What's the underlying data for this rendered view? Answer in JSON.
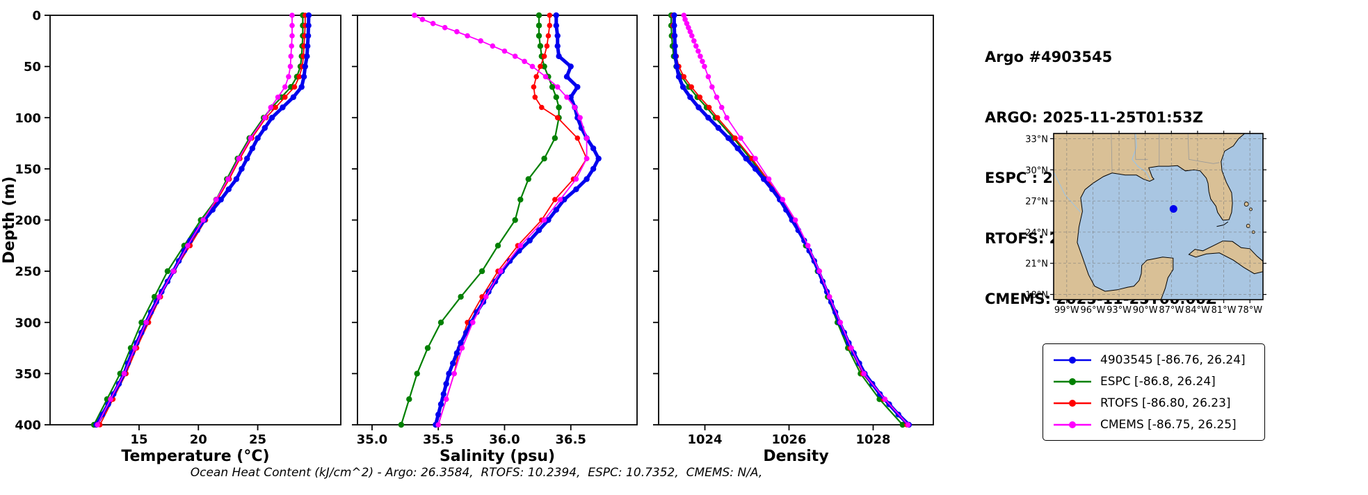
{
  "header": {
    "title": "Argo #4903545",
    "lines": [
      "ARGO: 2025-11-25T01:53Z",
      "ESPC : 2025-11-25T03:00Z",
      "RTOFS: 2025-11-25T00:00Z",
      "CMEMS: 2025-11-25T00:00Z"
    ]
  },
  "footer": {
    "text": "Ocean Heat Content (kJ/cm^2) - Argo: 26.3584,  RTOFS: 10.2394,  ESPC: 10.7352,  CMEMS: N/A,"
  },
  "legend": {
    "items": [
      {
        "name": "argo",
        "label": "4903545 [-86.76, 26.24]",
        "color": "#0000ee"
      },
      {
        "name": "espc",
        "label": "ESPC [-86.8, 26.24]",
        "color": "#008000"
      },
      {
        "name": "rtofs",
        "label": "RTOFS [-86.80, 26.23]",
        "color": "#ff0000"
      },
      {
        "name": "cmems",
        "label": "CMEMS [-86.75, 26.25]",
        "color": "#ff00ff"
      }
    ]
  },
  "map": {
    "lat_ticks": [
      "33°N",
      "30°N",
      "27°N",
      "24°N",
      "21°N",
      "18°N"
    ],
    "lon_ticks": [
      "99°W",
      "96°W",
      "93°W",
      "90°W",
      "87°W",
      "84°W",
      "81°W",
      "78°W"
    ],
    "marker": {
      "lon": -86.76,
      "lat": 26.24,
      "color": "#0000ee"
    },
    "land_color": "#d9c096",
    "water_color": "#a9c6e2"
  },
  "chart_data": [
    {
      "type": "line",
      "name": "temperature",
      "xlabel": "Temperature (°C)",
      "ylabel": "Depth (m)",
      "xlim": [
        7.5,
        32.0
      ],
      "ylim": [
        0,
        400
      ],
      "grid": false,
      "xtick_values": [
        15,
        20,
        25
      ],
      "xtick_labels": [
        "15",
        "20",
        "25"
      ],
      "ytick_values": [
        0,
        50,
        100,
        150,
        200,
        250,
        300,
        350,
        400
      ],
      "ytick_labels": [
        "0",
        "50",
        "100",
        "150",
        "200",
        "250",
        "300",
        "350",
        "400"
      ],
      "series": [
        {
          "name": "ESPC",
          "color": "#008000",
          "lw": 2.2,
          "r": 4.2,
          "depths": [
            0,
            10,
            20,
            30,
            40,
            50,
            60,
            70,
            80,
            90,
            100,
            120,
            140,
            160,
            180,
            200,
            225,
            250,
            275,
            300,
            325,
            350,
            375,
            400
          ],
          "values": [
            28.8,
            28.8,
            28.8,
            28.75,
            28.7,
            28.6,
            28.3,
            27.8,
            27.0,
            26.2,
            25.5,
            24.3,
            23.3,
            22.4,
            21.5,
            20.2,
            18.8,
            17.4,
            16.3,
            15.2,
            14.3,
            13.4,
            12.3,
            11.2
          ]
        },
        {
          "name": "RTOFS",
          "color": "#ff0000",
          "lw": 1.8,
          "r": 3.8,
          "depths": [
            0,
            10,
            20,
            30,
            40,
            50,
            60,
            70,
            80,
            90,
            100,
            120,
            140,
            160,
            180,
            200,
            225,
            250,
            275,
            300,
            325,
            350,
            375,
            400
          ],
          "values": [
            29.0,
            29.0,
            28.95,
            28.9,
            28.85,
            28.75,
            28.5,
            28.1,
            27.3,
            26.5,
            25.7,
            24.5,
            23.5,
            22.6,
            21.6,
            20.6,
            19.3,
            17.95,
            16.8,
            15.8,
            14.8,
            13.9,
            12.8,
            11.7
          ]
        },
        {
          "name": "4903545",
          "color": "#0000ee",
          "lw": 5,
          "r": 4.2,
          "depths": [
            0,
            10,
            20,
            30,
            40,
            50,
            60,
            70,
            80,
            90,
            100,
            110,
            120,
            130,
            140,
            150,
            160,
            170,
            180,
            190,
            200,
            210,
            220,
            230,
            240,
            250,
            260,
            270,
            280,
            290,
            300,
            310,
            320,
            330,
            340,
            350,
            360,
            370,
            380,
            390,
            400
          ],
          "values": [
            29.3,
            29.28,
            29.25,
            29.2,
            29.15,
            29.0,
            28.9,
            28.7,
            28.0,
            27.1,
            26.2,
            25.6,
            25.0,
            24.55,
            24.1,
            23.65,
            23.2,
            22.55,
            21.9,
            21.2,
            20.5,
            19.9,
            19.3,
            18.8,
            18.35,
            17.9,
            17.4,
            16.9,
            16.45,
            16.0,
            15.6,
            15.2,
            14.8,
            14.4,
            14.05,
            13.75,
            13.3,
            12.85,
            12.4,
            11.9,
            11.4
          ]
        },
        {
          "name": "CMEMS",
          "color": "#ff00ff",
          "lw": 1.8,
          "r": 3.8,
          "depths": [
            0,
            10,
            20,
            30,
            40,
            50,
            60,
            70,
            80,
            90,
            100,
            120,
            140,
            160,
            180,
            200,
            225,
            250,
            275,
            300,
            325,
            350,
            375,
            400
          ],
          "values": [
            27.9,
            27.9,
            27.9,
            27.85,
            27.8,
            27.75,
            27.6,
            27.3,
            26.7,
            26.1,
            25.6,
            24.4,
            23.4,
            22.5,
            21.5,
            20.4,
            19.1,
            17.9,
            16.7,
            15.6,
            14.65,
            13.75,
            12.6,
            11.5
          ]
        }
      ]
    },
    {
      "type": "line",
      "name": "salinity",
      "xlabel": "Salinity (psu)",
      "ylabel": "Depth (m)",
      "xlim": [
        34.89,
        37.0
      ],
      "ylim": [
        0,
        400
      ],
      "grid": false,
      "xtick_values": [
        35.0,
        35.5,
        36.0,
        36.5
      ],
      "xtick_labels": [
        "35.0",
        "35.5",
        "36.0",
        "36.5"
      ],
      "ytick_values": [
        0,
        50,
        100,
        150,
        200,
        250,
        300,
        350,
        400
      ],
      "ytick_labels": [
        "0",
        "50",
        "100",
        "150",
        "200",
        "250",
        "300",
        "350",
        "400"
      ],
      "series": [
        {
          "name": "ESPC",
          "color": "#008000",
          "lw": 2.2,
          "r": 4.2,
          "depths": [
            0,
            10,
            20,
            30,
            40,
            50,
            60,
            70,
            80,
            90,
            100,
            120,
            140,
            160,
            180,
            200,
            225,
            250,
            275,
            300,
            325,
            350,
            375,
            400
          ],
          "values": [
            36.26,
            36.26,
            36.26,
            36.27,
            36.28,
            36.3,
            36.33,
            36.36,
            36.39,
            36.41,
            36.41,
            36.38,
            36.3,
            36.18,
            36.12,
            36.08,
            35.95,
            35.83,
            35.67,
            35.52,
            35.42,
            35.34,
            35.28,
            35.22
          ]
        },
        {
          "name": "RTOFS",
          "color": "#ff0000",
          "lw": 1.8,
          "r": 3.8,
          "depths": [
            0,
            10,
            20,
            30,
            40,
            50,
            60,
            70,
            80,
            90,
            100,
            120,
            140,
            160,
            180,
            200,
            225,
            250,
            275,
            300,
            325,
            350,
            375,
            400
          ],
          "values": [
            36.34,
            36.34,
            36.33,
            36.32,
            36.3,
            36.27,
            36.24,
            36.22,
            36.23,
            36.28,
            36.4,
            36.55,
            36.62,
            36.52,
            36.38,
            36.28,
            36.1,
            35.95,
            35.83,
            35.72,
            35.66,
            35.62,
            35.56,
            35.5
          ]
        },
        {
          "name": "4903545",
          "color": "#0000ee",
          "lw": 5,
          "r": 4.2,
          "depths": [
            0,
            10,
            20,
            30,
            40,
            50,
            60,
            70,
            80,
            90,
            100,
            110,
            120,
            130,
            140,
            150,
            160,
            170,
            180,
            190,
            200,
            210,
            220,
            230,
            240,
            250,
            260,
            270,
            280,
            290,
            300,
            310,
            320,
            330,
            340,
            350,
            360,
            370,
            380,
            390,
            400
          ],
          "values": [
            36.39,
            36.39,
            36.4,
            36.4,
            36.41,
            36.5,
            36.47,
            36.55,
            36.5,
            36.53,
            36.55,
            36.58,
            36.62,
            36.67,
            36.71,
            36.67,
            36.62,
            36.54,
            36.45,
            36.39,
            36.33,
            36.26,
            36.19,
            36.11,
            36.04,
            35.98,
            35.93,
            35.88,
            35.84,
            35.79,
            35.75,
            35.71,
            35.67,
            35.64,
            35.61,
            35.58,
            35.56,
            35.54,
            35.52,
            35.5,
            35.48
          ]
        },
        {
          "name": "CMEMS",
          "color": "#ff00ff",
          "lw": 1.8,
          "r": 3.8,
          "depths": [
            0,
            4,
            8,
            12,
            16,
            20,
            25,
            30,
            35,
            40,
            45,
            50,
            60,
            70,
            80,
            90,
            100,
            120,
            140,
            160,
            180,
            200,
            225,
            250,
            275,
            300,
            325,
            350,
            375,
            400
          ],
          "values": [
            35.32,
            35.38,
            35.46,
            35.55,
            35.64,
            35.72,
            35.82,
            35.91,
            36.0,
            36.08,
            36.15,
            36.21,
            36.31,
            36.4,
            36.47,
            36.53,
            36.57,
            36.62,
            36.62,
            36.54,
            36.42,
            36.3,
            36.12,
            35.97,
            35.86,
            35.76,
            35.68,
            35.62,
            35.56,
            35.5
          ]
        }
      ]
    },
    {
      "type": "line",
      "name": "density",
      "xlabel": "Density",
      "ylabel": "Depth (m)",
      "xlim": [
        1022.9,
        1029.43
      ],
      "ylim": [
        0,
        400
      ],
      "grid": false,
      "xtick_values": [
        1024,
        1026,
        1028
      ],
      "xtick_labels": [
        "1024",
        "1026",
        "1028"
      ],
      "ytick_values": [
        0,
        50,
        100,
        150,
        200,
        250,
        300,
        350,
        400
      ],
      "ytick_labels": [
        "0",
        "50",
        "100",
        "150",
        "200",
        "250",
        "300",
        "350",
        "400"
      ],
      "series": [
        {
          "name": "ESPC",
          "color": "#008000",
          "lw": 2.2,
          "r": 4.2,
          "depths": [
            0,
            10,
            20,
            30,
            40,
            50,
            60,
            70,
            80,
            90,
            100,
            120,
            140,
            160,
            180,
            200,
            225,
            250,
            275,
            300,
            325,
            350,
            375,
            400
          ],
          "values": [
            1023.2,
            1023.2,
            1023.21,
            1023.23,
            1023.26,
            1023.32,
            1023.45,
            1023.62,
            1023.82,
            1024.04,
            1024.25,
            1024.68,
            1025.08,
            1025.45,
            1025.8,
            1026.1,
            1026.4,
            1026.68,
            1026.92,
            1027.15,
            1027.4,
            1027.7,
            1028.15,
            1028.7
          ]
        },
        {
          "name": "RTOFS",
          "color": "#ff0000",
          "lw": 1.8,
          "r": 3.8,
          "depths": [
            0,
            10,
            20,
            30,
            40,
            50,
            60,
            70,
            80,
            90,
            100,
            120,
            140,
            160,
            180,
            200,
            225,
            250,
            275,
            300,
            325,
            350,
            375,
            400
          ],
          "values": [
            1023.24,
            1023.24,
            1023.26,
            1023.28,
            1023.32,
            1023.38,
            1023.5,
            1023.68,
            1023.88,
            1024.1,
            1024.3,
            1024.72,
            1025.12,
            1025.48,
            1025.82,
            1026.12,
            1026.44,
            1026.72,
            1026.96,
            1027.2,
            1027.45,
            1027.75,
            1028.25,
            1028.8
          ]
        },
        {
          "name": "4903545",
          "color": "#0000ee",
          "lw": 5,
          "r": 4.2,
          "depths": [
            0,
            10,
            20,
            30,
            40,
            50,
            60,
            70,
            80,
            90,
            100,
            110,
            120,
            130,
            140,
            150,
            160,
            170,
            180,
            190,
            200,
            210,
            220,
            230,
            240,
            250,
            260,
            270,
            280,
            290,
            300,
            310,
            320,
            330,
            340,
            350,
            360,
            370,
            380,
            390,
            400
          ],
          "values": [
            1023.27,
            1023.27,
            1023.28,
            1023.29,
            1023.3,
            1023.33,
            1023.38,
            1023.48,
            1023.65,
            1023.85,
            1024.08,
            1024.32,
            1024.56,
            1024.78,
            1024.98,
            1025.2,
            1025.4,
            1025.6,
            1025.78,
            1025.93,
            1026.07,
            1026.22,
            1026.36,
            1026.48,
            1026.6,
            1026.7,
            1026.8,
            1026.9,
            1027.0,
            1027.1,
            1027.2,
            1027.31,
            1027.42,
            1027.54,
            1027.67,
            1027.8,
            1027.98,
            1028.16,
            1028.38,
            1028.6,
            1028.85
          ]
        },
        {
          "name": "CMEMS",
          "color": "#ff00ff",
          "lw": 1.8,
          "r": 3.8,
          "depths": [
            0,
            4,
            8,
            12,
            16,
            20,
            25,
            30,
            35,
            40,
            45,
            50,
            60,
            70,
            80,
            90,
            100,
            120,
            140,
            160,
            180,
            200,
            225,
            250,
            275,
            300,
            325,
            350,
            375,
            400
          ],
          "values": [
            1023.5,
            1023.53,
            1023.57,
            1023.61,
            1023.65,
            1023.69,
            1023.74,
            1023.79,
            1023.84,
            1023.89,
            1023.94,
            1023.99,
            1024.08,
            1024.17,
            1024.28,
            1024.4,
            1024.52,
            1024.85,
            1025.2,
            1025.52,
            1025.85,
            1026.15,
            1026.45,
            1026.72,
            1026.96,
            1027.22,
            1027.48,
            1027.78,
            1028.28,
            1028.83
          ]
        }
      ]
    }
  ]
}
